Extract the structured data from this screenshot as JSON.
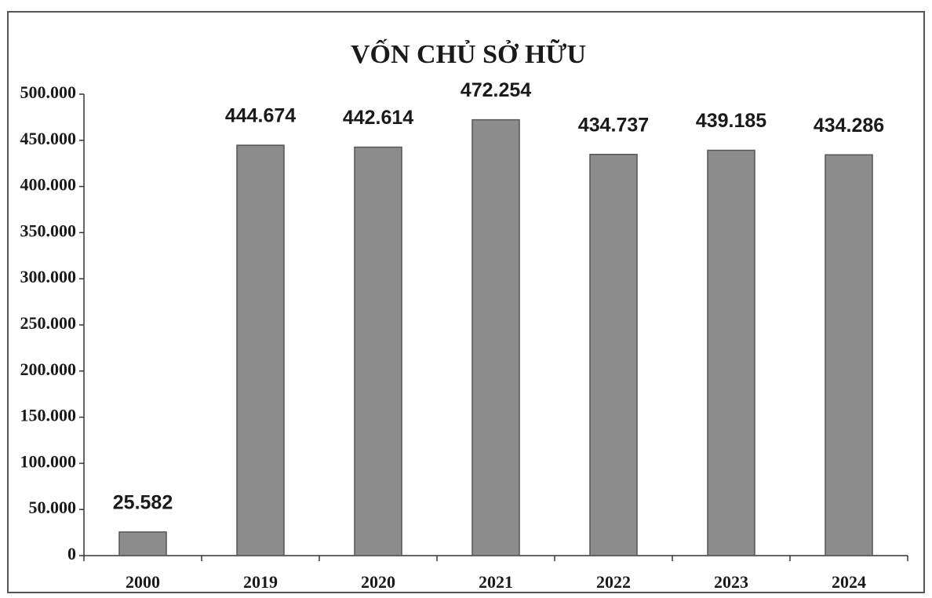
{
  "chart_data": {
    "type": "bar",
    "title": "VỐN CHỦ SỞ HỮU",
    "categories": [
      "2000",
      "2019",
      "2020",
      "2021",
      "2022",
      "2023",
      "2024"
    ],
    "values": [
      25582,
      444674,
      442614,
      472254,
      434737,
      439185,
      434286
    ],
    "value_labels": [
      "25.582",
      "444.674",
      "442.614",
      "472.254",
      "434.737",
      "439.185",
      "434.286"
    ],
    "color": "#8c8c8c",
    "ylim": [
      0,
      500000
    ],
    "yticks": [
      0,
      {
        "value": 50000,
        "label": "50.000"
      },
      {
        "value": 100000,
        "label": "100.000"
      },
      {
        "value": 150000,
        "label": "150.000"
      },
      {
        "value": 200000,
        "label": "200.000"
      },
      {
        "value": 250000,
        "label": "250.000"
      },
      {
        "value": 300000,
        "label": "300.000"
      },
      {
        "value": 350000,
        "label": "350.000"
      },
      {
        "value": 400000,
        "label": "400.000"
      },
      {
        "value": 450000,
        "label": "450.000"
      },
      {
        "value": 500000,
        "label": "500.000"
      }
    ],
    "grid": false
  }
}
